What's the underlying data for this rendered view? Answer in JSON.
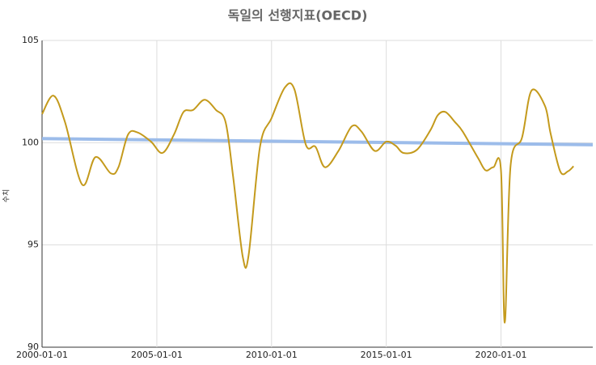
{
  "chart_data": {
    "type": "line",
    "title": "독일의 선행지표(OECD)",
    "y_label": "수치",
    "xlim": [
      "2000-01-01",
      "2024-01-01"
    ],
    "xticks": [
      "2000-01-01",
      "2005-01-01",
      "2010-01-01",
      "2015-01-01",
      "2020-01-01"
    ],
    "ylim": [
      90,
      105
    ],
    "yticks": [
      90,
      95,
      100,
      105
    ],
    "grid": true,
    "series": [
      {
        "color": "#c49a1c",
        "smooth": true,
        "x": [
          "2000-01-01",
          "2000-07-01",
          "2001-01-01",
          "2001-10-01",
          "2002-05-01",
          "2003-01-01",
          "2003-05-01",
          "2003-10-01",
          "2004-03-01",
          "2004-10-01",
          "2005-04-01",
          "2005-10-01",
          "2006-03-01",
          "2006-08-01",
          "2007-02-01",
          "2007-08-01",
          "2008-01-01",
          "2008-05-01",
          "2008-10-01",
          "2009-01-01",
          "2009-07-01",
          "2010-01-01",
          "2010-08-01",
          "2011-01-01",
          "2011-07-01",
          "2011-12-01",
          "2012-05-01",
          "2012-12-01",
          "2013-07-01",
          "2013-12-01",
          "2014-07-01",
          "2015-01-01",
          "2015-06-01",
          "2015-10-01",
          "2016-05-01",
          "2016-12-01",
          "2017-04-01",
          "2017-08-01",
          "2018-01-01",
          "2018-05-01",
          "2019-01-01",
          "2019-05-01",
          "2019-09-01",
          "2020-01-01",
          "2020-03-01",
          "2020-06-01",
          "2020-12-01",
          "2021-05-01",
          "2021-12-01",
          "2022-03-01",
          "2022-08-01",
          "2022-12-01",
          "2023-03-01"
        ],
        "values": [
          101.4,
          102.3,
          101.0,
          97.95,
          99.3,
          98.5,
          98.8,
          100.4,
          100.5,
          100.05,
          99.5,
          100.4,
          101.5,
          101.6,
          102.1,
          101.6,
          101.0,
          98.3,
          94.4,
          94.5,
          99.8,
          101.2,
          102.7,
          102.6,
          99.9,
          99.8,
          98.8,
          99.6,
          100.8,
          100.55,
          99.6,
          100.05,
          99.85,
          99.5,
          99.65,
          100.6,
          101.35,
          101.5,
          101.0,
          100.55,
          99.25,
          98.65,
          98.8,
          98.65,
          91.2,
          98.85,
          100.25,
          102.55,
          101.8,
          100.45,
          98.6,
          98.6,
          98.85
        ]
      },
      {
        "color": "#9cbcea",
        "smooth": false,
        "x": [
          "2000-01-01",
          "2024-01-01"
        ],
        "values": [
          100.2,
          99.9
        ]
      }
    ]
  }
}
